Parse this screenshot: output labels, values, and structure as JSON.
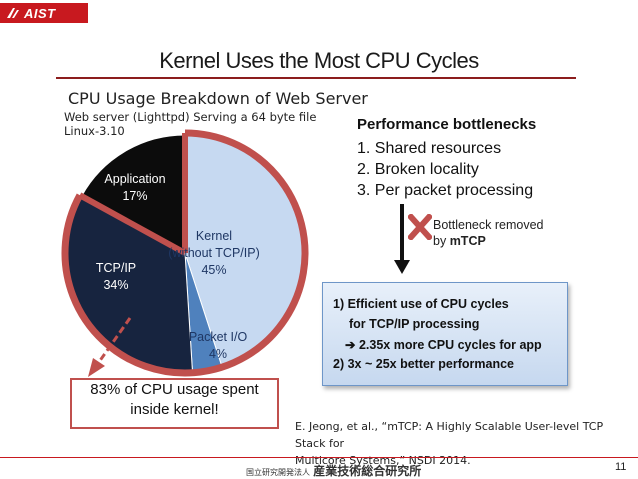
{
  "header": {
    "logo_text": "AIST",
    "title": "Kernel Uses the Most CPU Cycles"
  },
  "chart_data": {
    "type": "pie",
    "title": "CPU Usage Breakdown of Web Server",
    "subtitle_lines": [
      "Web server (Lighttpd) Serving a 64 byte file",
      "Linux-3.10"
    ],
    "slices": [
      {
        "name": "Kernel",
        "name_line2": "(without TCP/IP)",
        "value": 45,
        "label": "45%",
        "color": "#c6d9f1",
        "label_color": "#1f3764"
      },
      {
        "name": "Packet I/O",
        "value": 4,
        "label": "4%",
        "color": "#4f81bd",
        "label_color": "#1f3764"
      },
      {
        "name": "TCP/IP",
        "value": 34,
        "label": "34%",
        "color": "#17243f",
        "label_color": "#ffffff"
      },
      {
        "name": "Application",
        "value": 17,
        "label": "17%",
        "color": "#0c0c0c",
        "label_color": "#ffffff"
      }
    ],
    "highlight_color": "#c0504d",
    "highlight_total": 83
  },
  "bottlenecks": {
    "title": "Performance bottlenecks",
    "items": [
      "1. Shared resources",
      "2. Broken locality",
      "3. Per packet processing"
    ]
  },
  "removed": {
    "line1": "Bottleneck removed",
    "line2_prefix": "by ",
    "line2_bold": "mTCP"
  },
  "results": {
    "line1": "1) Efficient use of CPU cycles",
    "line2": "for TCP/IP processing",
    "line3": "2.35x more CPU cycles for app",
    "line4": "2) 3x ~ 25x better performance"
  },
  "callout": {
    "line1": "83% of CPU usage spent",
    "line2": "inside kernel!"
  },
  "citation": {
    "line1": "E. Jeong, et al., “mTCP: A Highly Scalable User-level TCP Stack for",
    "line2": "Multicore Systems,” NSDI 2014."
  },
  "footer": {
    "org_small": "国立研究開発法人",
    "org_large": "産業技術総合研究所",
    "page_number": "11"
  }
}
